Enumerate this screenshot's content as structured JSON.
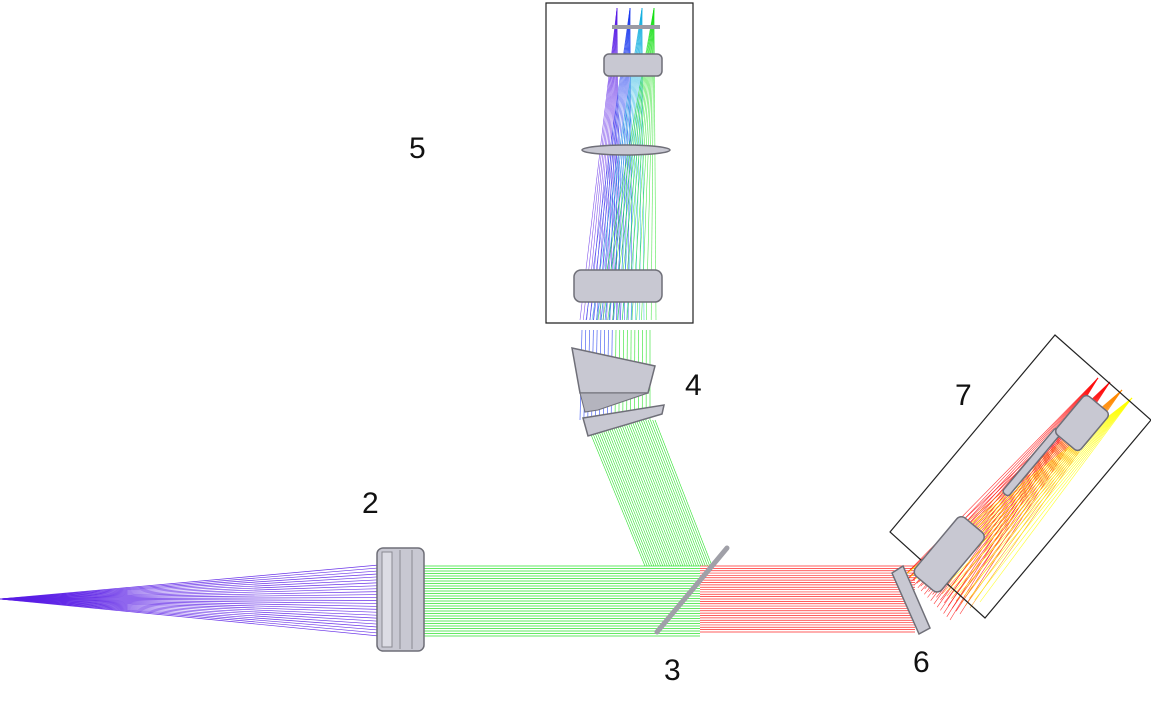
{
  "labels": {
    "l2": "2",
    "l3": "3",
    "l4": "4",
    "l5": "5",
    "l6": "6",
    "l7": "7"
  },
  "colors": {
    "violet": "#5a1ee6",
    "blue": "#1e3cf0",
    "green": "#18e018",
    "red": "#ff1010",
    "orange": "#ff8a00",
    "yellow": "#ffff00",
    "lens_fill": "#c8c8d2",
    "lens_edge": "#6f6f78",
    "box_border": "#222222",
    "background": "#ffffff"
  }
}
